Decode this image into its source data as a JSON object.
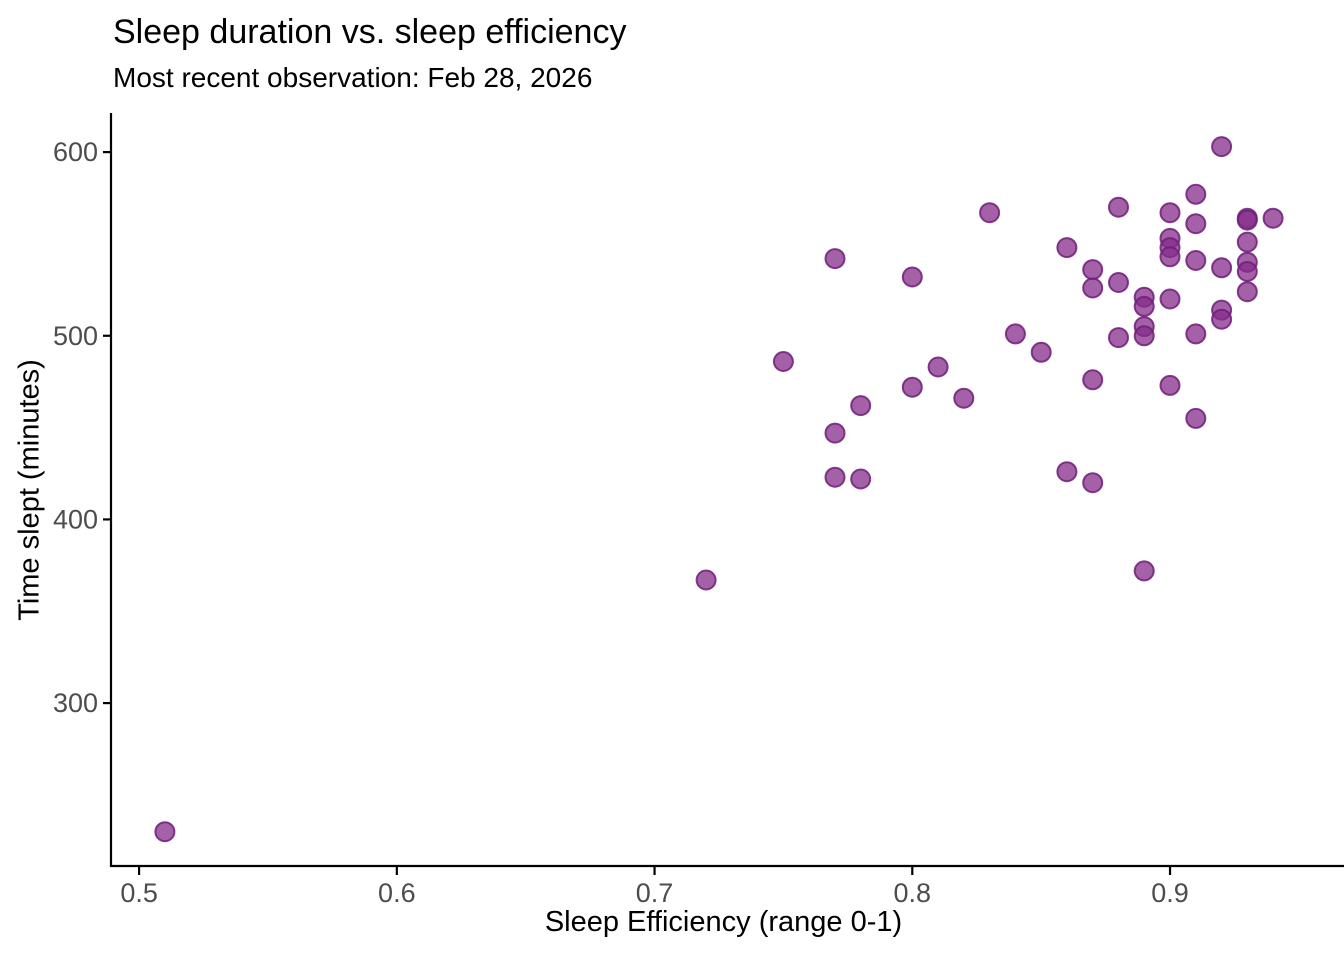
{
  "header": {
    "title": "Sleep duration vs. sleep efficiency",
    "subtitle": "Most recent observation: Feb 28, 2026"
  },
  "chart_data": {
    "type": "scatter",
    "title": "Sleep duration vs. sleep efficiency",
    "subtitle": "Most recent observation: Feb 28, 2026",
    "xlabel": "Sleep Efficiency (range 0-1)",
    "ylabel": "Time slept (minutes)",
    "x_ticks": [
      "0.5",
      "0.6",
      "0.7",
      "0.8",
      "0.9"
    ],
    "x_tick_values": [
      0.5,
      0.6,
      0.7,
      0.8,
      0.9
    ],
    "y_ticks": [
      "300",
      "400",
      "500",
      "600"
    ],
    "y_tick_values": [
      300,
      400,
      500,
      600
    ],
    "xlim": [
      0.4891,
      0.9644
    ],
    "ylim": [
      211.3,
      620.2
    ],
    "grid": false,
    "legend": "none",
    "colors": {
      "point_fill": "#862C8B",
      "point_fill_opacity": 0.75,
      "point_stroke": "#6F1E78",
      "point_stroke_opacity": 0.85,
      "axis_line": "#000000",
      "tick_label": "#4D4D4D"
    },
    "points": [
      {
        "x": 0.51,
        "y": 230
      },
      {
        "x": 0.72,
        "y": 367
      },
      {
        "x": 0.75,
        "y": 486
      },
      {
        "x": 0.77,
        "y": 542
      },
      {
        "x": 0.77,
        "y": 447
      },
      {
        "x": 0.77,
        "y": 423
      },
      {
        "x": 0.78,
        "y": 462
      },
      {
        "x": 0.78,
        "y": 422
      },
      {
        "x": 0.8,
        "y": 532
      },
      {
        "x": 0.8,
        "y": 472
      },
      {
        "x": 0.81,
        "y": 483
      },
      {
        "x": 0.82,
        "y": 466
      },
      {
        "x": 0.83,
        "y": 567
      },
      {
        "x": 0.84,
        "y": 501
      },
      {
        "x": 0.85,
        "y": 491
      },
      {
        "x": 0.86,
        "y": 548
      },
      {
        "x": 0.86,
        "y": 426
      },
      {
        "x": 0.87,
        "y": 536
      },
      {
        "x": 0.87,
        "y": 526
      },
      {
        "x": 0.87,
        "y": 476
      },
      {
        "x": 0.87,
        "y": 420
      },
      {
        "x": 0.88,
        "y": 570
      },
      {
        "x": 0.88,
        "y": 529
      },
      {
        "x": 0.88,
        "y": 499
      },
      {
        "x": 0.89,
        "y": 521
      },
      {
        "x": 0.89,
        "y": 516
      },
      {
        "x": 0.89,
        "y": 505
      },
      {
        "x": 0.89,
        "y": 500
      },
      {
        "x": 0.89,
        "y": 372
      },
      {
        "x": 0.9,
        "y": 567
      },
      {
        "x": 0.9,
        "y": 553
      },
      {
        "x": 0.9,
        "y": 548
      },
      {
        "x": 0.9,
        "y": 543
      },
      {
        "x": 0.9,
        "y": 520
      },
      {
        "x": 0.9,
        "y": 473
      },
      {
        "x": 0.91,
        "y": 577
      },
      {
        "x": 0.91,
        "y": 561
      },
      {
        "x": 0.91,
        "y": 541
      },
      {
        "x": 0.91,
        "y": 501
      },
      {
        "x": 0.91,
        "y": 455
      },
      {
        "x": 0.92,
        "y": 603
      },
      {
        "x": 0.92,
        "y": 537
      },
      {
        "x": 0.92,
        "y": 514
      },
      {
        "x": 0.92,
        "y": 509
      },
      {
        "x": 0.93,
        "y": 564
      },
      {
        "x": 0.93,
        "y": 563
      },
      {
        "x": 0.93,
        "y": 551
      },
      {
        "x": 0.93,
        "y": 540
      },
      {
        "x": 0.93,
        "y": 535
      },
      {
        "x": 0.93,
        "y": 524
      },
      {
        "x": 0.94,
        "y": 564
      }
    ]
  }
}
